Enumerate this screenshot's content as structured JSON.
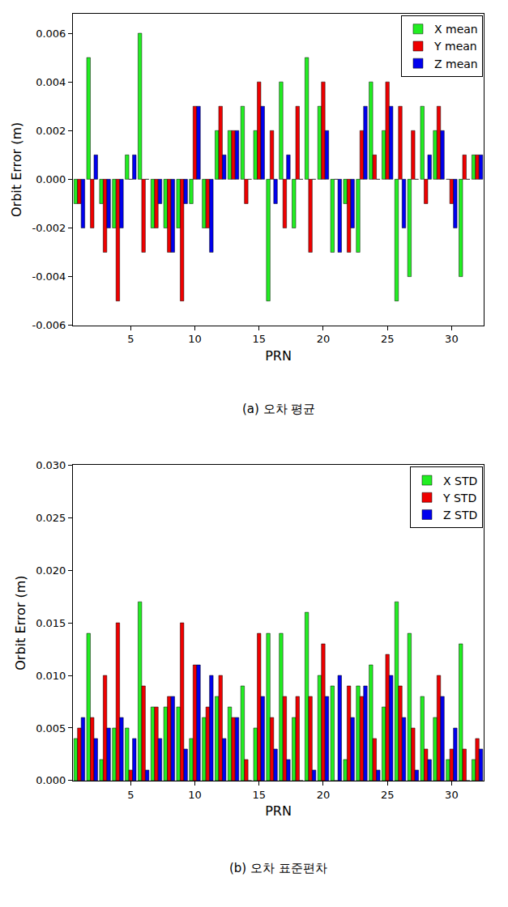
{
  "chart_data": [
    {
      "type": "bar",
      "title": "(a) 오차 평균",
      "x_label": "PRN",
      "y_label": "Orbit Error (m)",
      "x": [
        1,
        2,
        3,
        4,
        5,
        6,
        7,
        8,
        9,
        10,
        11,
        12,
        13,
        14,
        15,
        16,
        17,
        18,
        19,
        20,
        21,
        22,
        23,
        24,
        25,
        26,
        27,
        28,
        29,
        30,
        31,
        32
      ],
      "series": [
        {
          "name": "X mean",
          "color": "#22ee22",
          "values": [
            -0.001,
            0.005,
            -0.001,
            -0.002,
            0.001,
            0.006,
            -0.002,
            -0.002,
            -0.002,
            -0.001,
            -0.002,
            0.002,
            0.002,
            0.003,
            0.002,
            -0.005,
            0.004,
            -0.002,
            0.005,
            0.003,
            -0.003,
            -0.001,
            -0.003,
            0.004,
            0.002,
            -0.005,
            -0.004,
            0.003,
            0.002,
            0,
            -0.004,
            0.001
          ]
        },
        {
          "name": "Y mean",
          "color": "#ee0000",
          "values": [
            -0.001,
            -0.002,
            -0.003,
            -0.005,
            0,
            -0.003,
            -0.002,
            -0.003,
            -0.005,
            0.003,
            -0.002,
            0.003,
            0.002,
            -0.001,
            0.004,
            0.002,
            -0.002,
            0.003,
            -0.003,
            0.004,
            0,
            -0.003,
            0.002,
            0.001,
            0.004,
            0.003,
            0.002,
            -0.001,
            0.003,
            -0.001,
            0.001,
            0.001
          ]
        },
        {
          "name": "Z mean",
          "color": "#0000ee",
          "values": [
            -0.002,
            0.001,
            -0.002,
            -0.002,
            0.001,
            0,
            -0.001,
            -0.003,
            -0.001,
            0.003,
            -0.003,
            0.001,
            0.002,
            0,
            0.003,
            -0.001,
            0.001,
            0,
            0,
            0.002,
            -0.003,
            -0.002,
            0.003,
            0,
            0.003,
            -0.002,
            0,
            0.001,
            0.002,
            -0.002,
            0,
            0.001
          ]
        }
      ],
      "xlim": [
        0.5,
        32.5
      ],
      "xticks": [
        5,
        10,
        15,
        20,
        25,
        30
      ],
      "ylim": [
        -0.006,
        0.0068
      ],
      "yticks": [
        -0.006,
        -0.004,
        -0.002,
        {
          "value": 0,
          "label": "0.000"
        },
        0.002,
        0.004,
        0.006
      ],
      "grid": false,
      "legend": "top right"
    },
    {
      "type": "bar",
      "title": "(b) 오차 표준편차",
      "x_label": "PRN",
      "y_label": "Orbit Error (m)",
      "x": [
        1,
        2,
        3,
        4,
        5,
        6,
        7,
        8,
        9,
        10,
        11,
        12,
        13,
        14,
        15,
        16,
        17,
        18,
        19,
        20,
        21,
        22,
        23,
        24,
        25,
        26,
        27,
        28,
        29,
        30,
        31,
        32
      ],
      "series": [
        {
          "name": "X STD",
          "color": "#22ee22",
          "values": [
            0.004,
            0.014,
            0.002,
            0.005,
            0.005,
            0.017,
            0.007,
            0.007,
            0.007,
            0.004,
            0.006,
            0.008,
            0.007,
            0.009,
            0.005,
            0.014,
            0.014,
            0.006,
            0.016,
            0.01,
            0.009,
            0.002,
            0.009,
            0.011,
            0.007,
            0.017,
            0.014,
            0.008,
            0.006,
            0.002,
            0.013,
            0.002
          ]
        },
        {
          "name": "Y STD",
          "color": "#ee0000",
          "values": [
            0.005,
            0.006,
            0.01,
            0.015,
            0.001,
            0.009,
            0.007,
            0.008,
            0.015,
            0.011,
            0.007,
            0.01,
            0.006,
            0.002,
            0.014,
            0.006,
            0.008,
            0.008,
            0.008,
            0.013,
            0,
            0.009,
            0.008,
            0.004,
            0.012,
            0.009,
            0.005,
            0.003,
            0.01,
            0.003,
            0.003,
            0.004
          ]
        },
        {
          "name": "Z STD",
          "color": "#0000ee",
          "values": [
            0.006,
            0.004,
            0.005,
            0.006,
            0.004,
            0.001,
            0.004,
            0.008,
            0.003,
            0.011,
            0.01,
            0.004,
            0.006,
            0,
            0.008,
            0.003,
            0.002,
            0,
            0.001,
            0.008,
            0.01,
            0.006,
            0.009,
            0.001,
            0.01,
            0.006,
            0.001,
            0.002,
            0.008,
            0.005,
            0,
            0.003
          ]
        }
      ],
      "xlim": [
        0.5,
        32.5
      ],
      "xticks": [
        5,
        10,
        15,
        20,
        25,
        30
      ],
      "ylim": [
        0,
        0.03
      ],
      "yticks": [
        {
          "value": 0,
          "label": "0.000"
        },
        0.005,
        {
          "value": 0.01,
          "label": "0.010"
        },
        0.015,
        {
          "value": 0.02,
          "label": "0.020"
        },
        0.025,
        {
          "value": 0.03,
          "label": "0.030"
        }
      ],
      "grid": false,
      "legend": "top right"
    }
  ]
}
